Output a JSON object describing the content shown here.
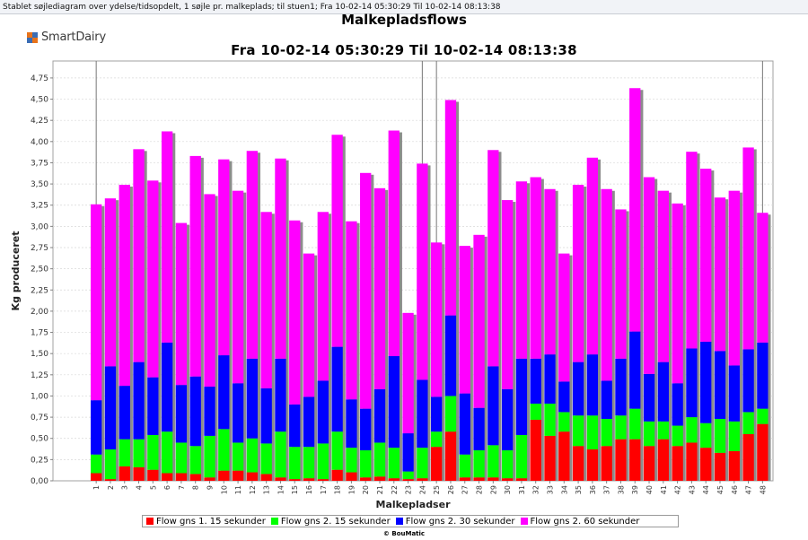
{
  "window": {
    "title": "Stablet søjlediagram over ydelse/tidsopdelt, 1 søjle pr. malkeplads; til stuen1; Fra 10-02-14 05:30:29 Til 10-02-14 08:13:38"
  },
  "logo": {
    "text": "SmartDairy"
  },
  "footer": {
    "text": "© BouMatic"
  },
  "chart_data": {
    "type": "bar",
    "stacked": true,
    "title": "Malkepladsflows",
    "subtitle": "Fra 10-02-14 05:30:29 Til 10-02-14 08:13:38",
    "xlabel": "Malkepladser",
    "ylabel": "Kg produceret",
    "ylim": [
      0,
      4.95
    ],
    "yticks": [
      "0,00",
      "0,25",
      "0,50",
      "0,75",
      "1,00",
      "1,25",
      "1,50",
      "1,75",
      "2,00",
      "2,25",
      "2,50",
      "2,75",
      "3,00",
      "3,25",
      "3,50",
      "3,75",
      "4,00",
      "4,25",
      "4,50",
      "4,75"
    ],
    "grid": true,
    "legend_position": "bottom",
    "categories": [
      "1",
      "2",
      "3",
      "4",
      "5",
      "6",
      "7",
      "8",
      "9",
      "10",
      "11",
      "12",
      "13",
      "14",
      "15",
      "16",
      "17",
      "18",
      "19",
      "20",
      "21",
      "22",
      "23",
      "24",
      "25",
      "26",
      "27",
      "28",
      "29",
      "30",
      "31",
      "32",
      "33",
      "34",
      "35",
      "36",
      "37",
      "38",
      "39",
      "40",
      "41",
      "42",
      "43",
      "44",
      "45",
      "46",
      "47",
      "48"
    ],
    "series": [
      {
        "name": "Flow gns 1. 15 sekunder",
        "color": "#ff0000",
        "values": [
          0.09,
          0.02,
          0.17,
          0.16,
          0.13,
          0.09,
          0.09,
          0.08,
          0.04,
          0.12,
          0.12,
          0.1,
          0.08,
          0.04,
          0.02,
          0.03,
          0.02,
          0.13,
          0.1,
          0.04,
          0.05,
          0.03,
          0.02,
          0.03,
          0.4,
          0.58,
          0.04,
          0.04,
          0.04,
          0.03,
          0.03,
          0.72,
          0.53,
          0.58,
          0.41,
          0.37,
          0.41,
          0.49,
          0.49,
          0.41,
          0.49,
          0.41,
          0.45,
          0.39,
          0.33,
          0.35,
          0.55,
          0.67
        ]
      },
      {
        "name": "Flow gns 2. 15 sekunder",
        "color": "#00ff00",
        "values": [
          0.22,
          0.35,
          0.32,
          0.33,
          0.41,
          0.49,
          0.36,
          0.33,
          0.49,
          0.49,
          0.33,
          0.4,
          0.36,
          0.54,
          0.38,
          0.37,
          0.42,
          0.45,
          0.29,
          0.32,
          0.4,
          0.36,
          0.09,
          0.36,
          0.18,
          0.42,
          0.27,
          0.32,
          0.38,
          0.33,
          0.51,
          0.19,
          0.38,
          0.23,
          0.36,
          0.4,
          0.32,
          0.28,
          0.36,
          0.29,
          0.21,
          0.24,
          0.3,
          0.29,
          0.4,
          0.35,
          0.26,
          0.18
        ]
      },
      {
        "name": "Flow gns 2. 30 sekunder",
        "color": "#0000ff",
        "values": [
          0.64,
          0.98,
          0.63,
          0.91,
          0.68,
          1.05,
          0.68,
          0.82,
          0.58,
          0.87,
          0.7,
          0.94,
          0.65,
          0.86,
          0.5,
          0.59,
          0.74,
          1.0,
          0.57,
          0.49,
          0.63,
          1.08,
          0.45,
          0.8,
          0.41,
          0.95,
          0.72,
          0.5,
          0.93,
          0.72,
          0.9,
          0.53,
          0.58,
          0.36,
          0.63,
          0.72,
          0.45,
          0.67,
          0.91,
          0.56,
          0.7,
          0.5,
          0.81,
          0.96,
          0.8,
          0.66,
          0.74,
          0.78
        ]
      },
      {
        "name": "Flow gns 2. 60 sekunder",
        "color": "#ff00ff",
        "values": [
          2.31,
          1.98,
          2.37,
          2.51,
          2.32,
          2.49,
          1.91,
          2.6,
          2.27,
          2.31,
          2.27,
          2.45,
          2.08,
          2.36,
          2.17,
          1.69,
          1.99,
          2.5,
          2.1,
          2.78,
          2.37,
          2.66,
          1.42,
          2.55,
          1.82,
          2.54,
          1.74,
          2.04,
          2.55,
          2.23,
          2.09,
          2.14,
          1.95,
          1.51,
          2.09,
          2.32,
          2.26,
          1.76,
          2.87,
          2.32,
          2.02,
          2.12,
          2.32,
          2.04,
          1.81,
          2.06,
          2.38,
          1.53
        ]
      }
    ]
  }
}
